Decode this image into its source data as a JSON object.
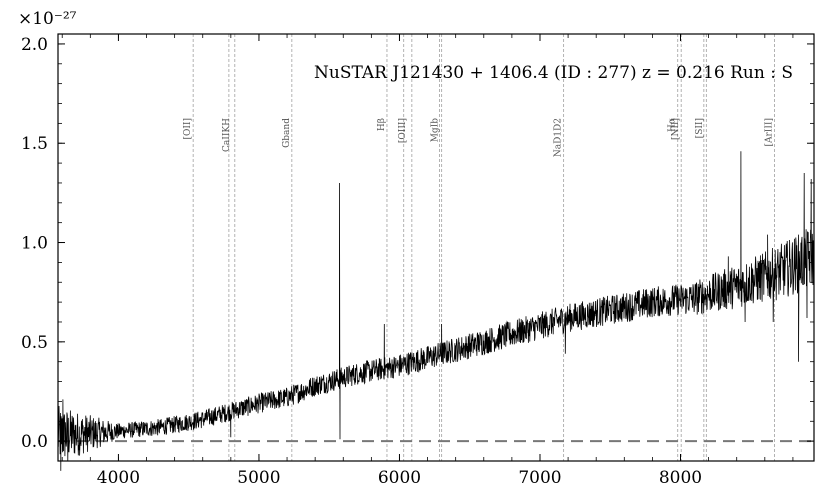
{
  "chart_data": {
    "type": "line",
    "title": "NuSTAR J121430 + 1406.4 (ID : 277)   z = 0.216   Run : S",
    "xlabel": "",
    "ylabel": "",
    "exponent_label": "×10⁻²⁷",
    "xlim": [
      3570,
      8950
    ],
    "ylim": [
      -0.1,
      2.05
    ],
    "xticks": [
      4000,
      5000,
      6000,
      7000,
      8000
    ],
    "yticks": [
      0.0,
      0.5,
      1.0,
      1.5,
      2.0
    ],
    "xtick_labels": [
      "4000",
      "5000",
      "6000",
      "7000",
      "8000"
    ],
    "ytick_labels": [
      "0.0",
      "0.5",
      "1.0",
      "1.5",
      "2.0"
    ],
    "zero_line": 0.0,
    "grid": false,
    "continuum": [
      {
        "x": 3580,
        "y": 0.03
      },
      {
        "x": 3800,
        "y": 0.04
      },
      {
        "x": 4000,
        "y": 0.05
      },
      {
        "x": 4300,
        "y": 0.07
      },
      {
        "x": 4600,
        "y": 0.11
      },
      {
        "x": 4800,
        "y": 0.15
      },
      {
        "x": 5000,
        "y": 0.19
      },
      {
        "x": 5200,
        "y": 0.22
      },
      {
        "x": 5400,
        "y": 0.28
      },
      {
        "x": 5700,
        "y": 0.34
      },
      {
        "x": 6000,
        "y": 0.38
      },
      {
        "x": 6300,
        "y": 0.44
      },
      {
        "x": 6600,
        "y": 0.5
      },
      {
        "x": 6900,
        "y": 0.56
      },
      {
        "x": 7200,
        "y": 0.62
      },
      {
        "x": 7500,
        "y": 0.66
      },
      {
        "x": 7800,
        "y": 0.7
      },
      {
        "x": 8100,
        "y": 0.72
      },
      {
        "x": 8400,
        "y": 0.78
      },
      {
        "x": 8700,
        "y": 0.85
      },
      {
        "x": 8950,
        "y": 0.93
      }
    ],
    "spikes": [
      {
        "x": 3590,
        "y": -0.15
      },
      {
        "x": 3605,
        "y": 0.21
      },
      {
        "x": 3640,
        "y": -0.1
      },
      {
        "x": 4800,
        "y": 0.02
      },
      {
        "x": 5573,
        "y": 1.3
      },
      {
        "x": 5577,
        "y": 0.01
      },
      {
        "x": 5892,
        "y": 0.59
      },
      {
        "x": 6300,
        "y": 0.59
      },
      {
        "x": 7180,
        "y": 0.44
      },
      {
        "x": 8340,
        "y": 0.93
      },
      {
        "x": 8430,
        "y": 1.46
      },
      {
        "x": 8460,
        "y": 0.6
      },
      {
        "x": 8620,
        "y": 1.04
      },
      {
        "x": 8660,
        "y": 0.6
      },
      {
        "x": 8840,
        "y": 0.4
      },
      {
        "x": 8880,
        "y": 1.35
      },
      {
        "x": 8900,
        "y": 0.62
      },
      {
        "x": 8930,
        "y": 1.32
      }
    ],
    "noise": [
      {
        "x": 3570,
        "y": 0.15
      },
      {
        "x": 4000,
        "y": 0.04
      },
      {
        "x": 5000,
        "y": 0.05
      },
      {
        "x": 6000,
        "y": 0.06
      },
      {
        "x": 7000,
        "y": 0.07
      },
      {
        "x": 8000,
        "y": 0.08
      },
      {
        "x": 8500,
        "y": 0.12
      },
      {
        "x": 8950,
        "y": 0.16
      }
    ],
    "lines": [
      {
        "label": "[OII]",
        "x": 4532
      },
      {
        "label": "CaIIKH",
        "x": 4786
      },
      {
        "label": "CaIIKH",
        "x": 4828
      },
      {
        "label": "Gband",
        "x": 5234
      },
      {
        "label": "Hβ",
        "x": 5911
      },
      {
        "label": "[OIII]",
        "x": 6030
      },
      {
        "label": "[OIII]",
        "x": 6088
      },
      {
        "label": "MgIb",
        "x": 6285
      },
      {
        "label": "MgIb",
        "x": 6300
      },
      {
        "label": "NaD1D2",
        "x": 7168
      },
      {
        "label": "Hα",
        "x": 7980
      },
      {
        "label": "[NII]",
        "x": 8005
      },
      {
        "label": "[SII]",
        "x": 8166
      },
      {
        "label": "[SII]",
        "x": 8184
      },
      {
        "label": "[ArIII]",
        "x": 8669
      }
    ],
    "line_annotations": [
      {
        "text": "[OII]",
        "x": 4532
      },
      {
        "text": "CaIIKH",
        "x": 4807
      },
      {
        "text": "Gband",
        "x": 5234
      },
      {
        "text": "Hβ",
        "x": 5911
      },
      {
        "text": "[OIII]",
        "x": 6059
      },
      {
        "text": "MgIb",
        "x": 6292
      },
      {
        "text": "NaD1D2",
        "x": 7168
      },
      {
        "text": "Hα",
        "x": 7980
      },
      {
        "text": "[NII]",
        "x": 8005
      },
      {
        "text": "[SII]",
        "x": 8175
      },
      {
        "text": "[ArIII]",
        "x": 8669
      }
    ]
  }
}
